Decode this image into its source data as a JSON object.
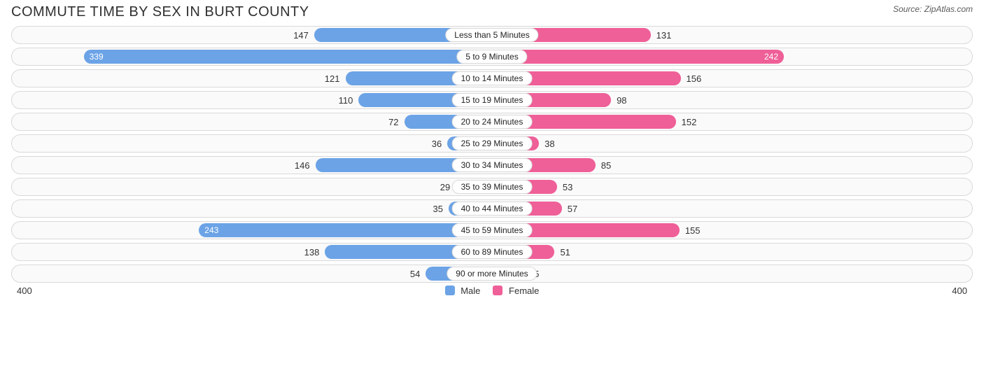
{
  "title": "COMMUTE TIME BY SEX IN BURT COUNTY",
  "source": "Source: ZipAtlas.com",
  "chart": {
    "type": "diverging-bar",
    "axis_max": 400,
    "axis_left_label": "400",
    "axis_right_label": "400",
    "background_color": "#ffffff",
    "row_bg": "#fafafa",
    "row_border": "#d9d9d9",
    "pill_bg": "#ffffff",
    "pill_border": "#d9d9d9",
    "label_color": "#333333",
    "inside_threshold": 200,
    "label_fontsize": 12,
    "title_fontsize": 20,
    "series": {
      "male": {
        "label": "Male",
        "color": "#6ba3e6",
        "text_color": "#ffffff"
      },
      "female": {
        "label": "Female",
        "color": "#ef5f98",
        "text_color": "#ffffff"
      }
    },
    "rows": [
      {
        "category": "Less than 5 Minutes",
        "male": 147,
        "female": 131
      },
      {
        "category": "5 to 9 Minutes",
        "male": 339,
        "female": 242
      },
      {
        "category": "10 to 14 Minutes",
        "male": 121,
        "female": 156
      },
      {
        "category": "15 to 19 Minutes",
        "male": 110,
        "female": 98
      },
      {
        "category": "20 to 24 Minutes",
        "male": 72,
        "female": 152
      },
      {
        "category": "25 to 29 Minutes",
        "male": 36,
        "female": 38
      },
      {
        "category": "30 to 34 Minutes",
        "male": 146,
        "female": 85
      },
      {
        "category": "35 to 39 Minutes",
        "male": 29,
        "female": 53
      },
      {
        "category": "40 to 44 Minutes",
        "male": 35,
        "female": 57
      },
      {
        "category": "45 to 59 Minutes",
        "male": 243,
        "female": 155
      },
      {
        "category": "60 to 89 Minutes",
        "male": 138,
        "female": 51
      },
      {
        "category": "90 or more Minutes",
        "male": 54,
        "female": 25
      }
    ]
  }
}
